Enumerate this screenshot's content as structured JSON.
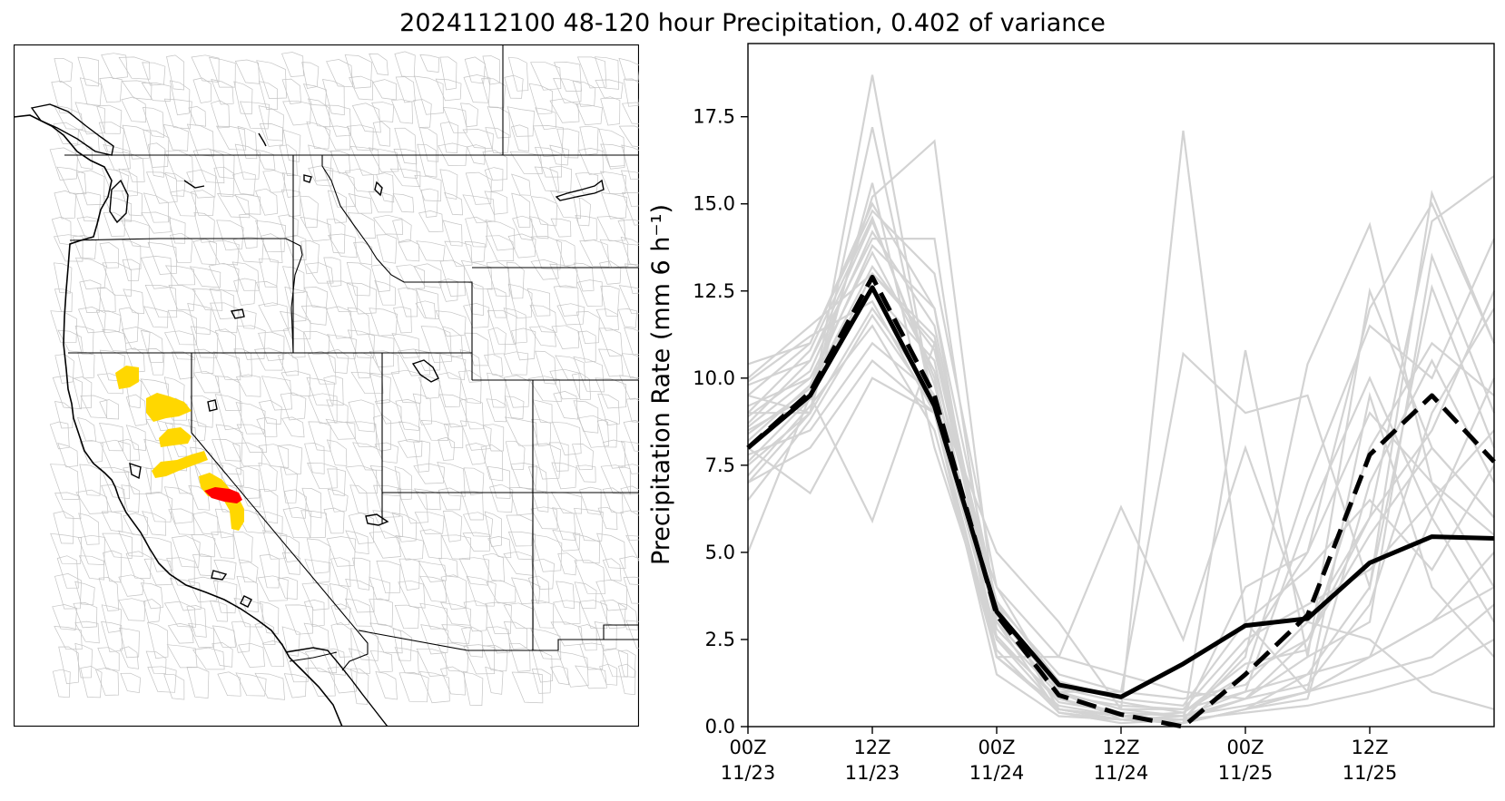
{
  "figure": {
    "title": "2024112100 48-120 hour Precipitation, 0.402 of variance"
  },
  "map": {
    "highlight_colors": {
      "yellow": "#ffd700",
      "red": "#ff0000"
    }
  },
  "chart_data": {
    "type": "line",
    "ylabel": "Precipitation Rate (mm 6 h⁻¹)",
    "ylim": [
      0,
      19.6
    ],
    "xlim": [
      0,
      12
    ],
    "grid": false,
    "yticks": [
      "0.0",
      "2.5",
      "5.0",
      "7.5",
      "10.0",
      "12.5",
      "15.0",
      "17.5"
    ],
    "xticks": [
      {
        "hour": "00Z",
        "date": "11/23"
      },
      {
        "hour": "12Z",
        "date": "11/23"
      },
      {
        "hour": "00Z",
        "date": "11/24"
      },
      {
        "hour": "12Z",
        "date": "11/24"
      },
      {
        "hour": "00Z",
        "date": "11/25"
      },
      {
        "hour": "12Z",
        "date": "11/25"
      }
    ],
    "x": [
      "11/23 00Z",
      "11/23 06Z",
      "11/23 12Z",
      "11/23 18Z",
      "11/24 00Z",
      "11/24 06Z",
      "11/24 12Z",
      "11/24 18Z",
      "11/25 00Z",
      "11/25 06Z",
      "11/25 12Z",
      "11/25 18Z",
      "11/26 00Z"
    ],
    "colors": {
      "member": "#d3d3d3",
      "mean": "#000000"
    },
    "series": [
      {
        "style": "solid",
        "values": [
          8.0,
          9.5,
          12.6,
          9.2,
          3.3,
          1.2,
          0.85,
          1.8,
          2.9,
          3.1,
          4.7,
          5.45,
          5.4
        ]
      },
      {
        "style": "dashed",
        "values": [
          8.0,
          9.6,
          12.9,
          9.5,
          3.2,
          0.9,
          0.35,
          0.0,
          1.5,
          3.2,
          7.8,
          9.5,
          7.6
        ]
      }
    ],
    "members": [
      [
        9.5,
        9.0,
        18.7,
        9.0,
        2.0,
        0.5,
        0.2,
        0.1,
        0.5,
        1.0,
        2.0,
        3.0,
        4.0
      ],
      [
        9.0,
        9.0,
        17.2,
        9.0,
        1.5,
        0.3,
        0.2,
        0.3,
        1.0,
        1.5,
        4.0,
        15.3,
        11.0
      ],
      [
        7.0,
        9.0,
        15.6,
        8.0,
        2.5,
        0.8,
        0.3,
        0.4,
        1.5,
        2.5,
        6.0,
        14.5,
        15.8
      ],
      [
        8.5,
        9.5,
        15.2,
        16.8,
        3.0,
        0.4,
        0.1,
        0.2,
        0.8,
        1.2,
        3.5,
        9.0,
        12.0
      ],
      [
        8.0,
        6.7,
        10.0,
        9.0,
        2.0,
        2.0,
        6.3,
        2.5,
        8.0,
        3.0,
        2.5,
        1.0,
        0.5
      ],
      [
        5.0,
        9.5,
        5.9,
        11.0,
        3.0,
        1.0,
        0.5,
        17.1,
        3.0,
        1.0,
        2.0,
        6.0,
        10.0
      ],
      [
        9.8,
        10.5,
        14.0,
        14.0,
        2.5,
        0.5,
        0.3,
        0.1,
        10.8,
        2.0,
        12.5,
        8.0,
        6.0
      ],
      [
        7.5,
        9.0,
        12.0,
        9.5,
        3.0,
        1.0,
        1.0,
        10.7,
        9.0,
        9.5,
        4.0,
        12.6,
        8.0
      ],
      [
        8.2,
        9.8,
        13.8,
        12.0,
        2.0,
        0.6,
        0.3,
        0.2,
        2.0,
        10.4,
        14.4,
        7.0,
        4.0
      ],
      [
        10.4,
        11.0,
        14.8,
        13.0,
        4.0,
        1.0,
        0.2,
        0.1,
        1.5,
        7.0,
        11.5,
        10.0,
        14.0
      ],
      [
        7.8,
        8.5,
        11.0,
        9.5,
        5.0,
        3.0,
        0.5,
        0.3,
        4.0,
        5.0,
        12.0,
        15.0,
        11.0
      ],
      [
        9.2,
        10.0,
        12.5,
        10.5,
        2.0,
        0.5,
        0.2,
        0.1,
        0.5,
        1.0,
        9.5,
        4.0,
        2.0
      ],
      [
        8.7,
        10.5,
        14.5,
        10.0,
        2.5,
        0.8,
        0.4,
        0.3,
        0.8,
        2.0,
        3.0,
        13.5,
        9.0
      ],
      [
        10.0,
        11.5,
        13.0,
        11.0,
        3.5,
        1.5,
        1.0,
        0.8,
        1.2,
        3.0,
        6.0,
        8.5,
        12.5
      ],
      [
        7.2,
        9.2,
        11.5,
        8.5,
        2.0,
        0.5,
        0.2,
        0.1,
        0.5,
        1.5,
        2.0,
        3.0,
        5.0
      ],
      [
        8.9,
        10.2,
        14.2,
        11.5,
        3.0,
        1.0,
        0.5,
        0.5,
        1.0,
        6.0,
        10.0,
        6.0,
        3.0
      ],
      [
        9.5,
        11.0,
        15.0,
        12.0,
        3.5,
        0.5,
        0.2,
        0.1,
        0.5,
        0.8,
        7.0,
        10.5,
        7.0
      ],
      [
        7.0,
        8.0,
        10.5,
        9.0,
        4.0,
        2.0,
        1.5,
        1.0,
        0.8,
        2.5,
        5.5,
        8.0,
        6.0
      ],
      [
        8.4,
        9.7,
        13.2,
        10.8,
        2.8,
        0.9,
        0.6,
        0.5,
        2.5,
        3.5,
        4.5,
        6.5,
        8.5
      ],
      [
        9.0,
        10.8,
        14.6,
        9.8,
        3.2,
        1.1,
        0.7,
        0.4,
        1.8,
        2.2,
        8.0,
        11.0,
        9.5
      ],
      [
        6.5,
        8.8,
        11.8,
        9.2,
        2.6,
        0.7,
        0.4,
        0.3,
        0.6,
        1.0,
        1.5,
        2.0,
        3.5
      ],
      [
        8.6,
        10.0,
        13.6,
        10.2,
        3.6,
        1.3,
        0.8,
        0.6,
        3.0,
        4.5,
        6.5,
        4.5,
        7.5
      ],
      [
        9.9,
        11.2,
        12.2,
        9.0,
        2.2,
        0.4,
        0.2,
        0.2,
        0.4,
        0.6,
        1.0,
        1.5,
        2.5
      ],
      [
        7.6,
        9.4,
        13.0,
        11.2,
        3.0,
        1.0,
        0.3,
        0.2,
        2.2,
        5.0,
        9.0,
        7.0,
        5.5
      ]
    ]
  }
}
